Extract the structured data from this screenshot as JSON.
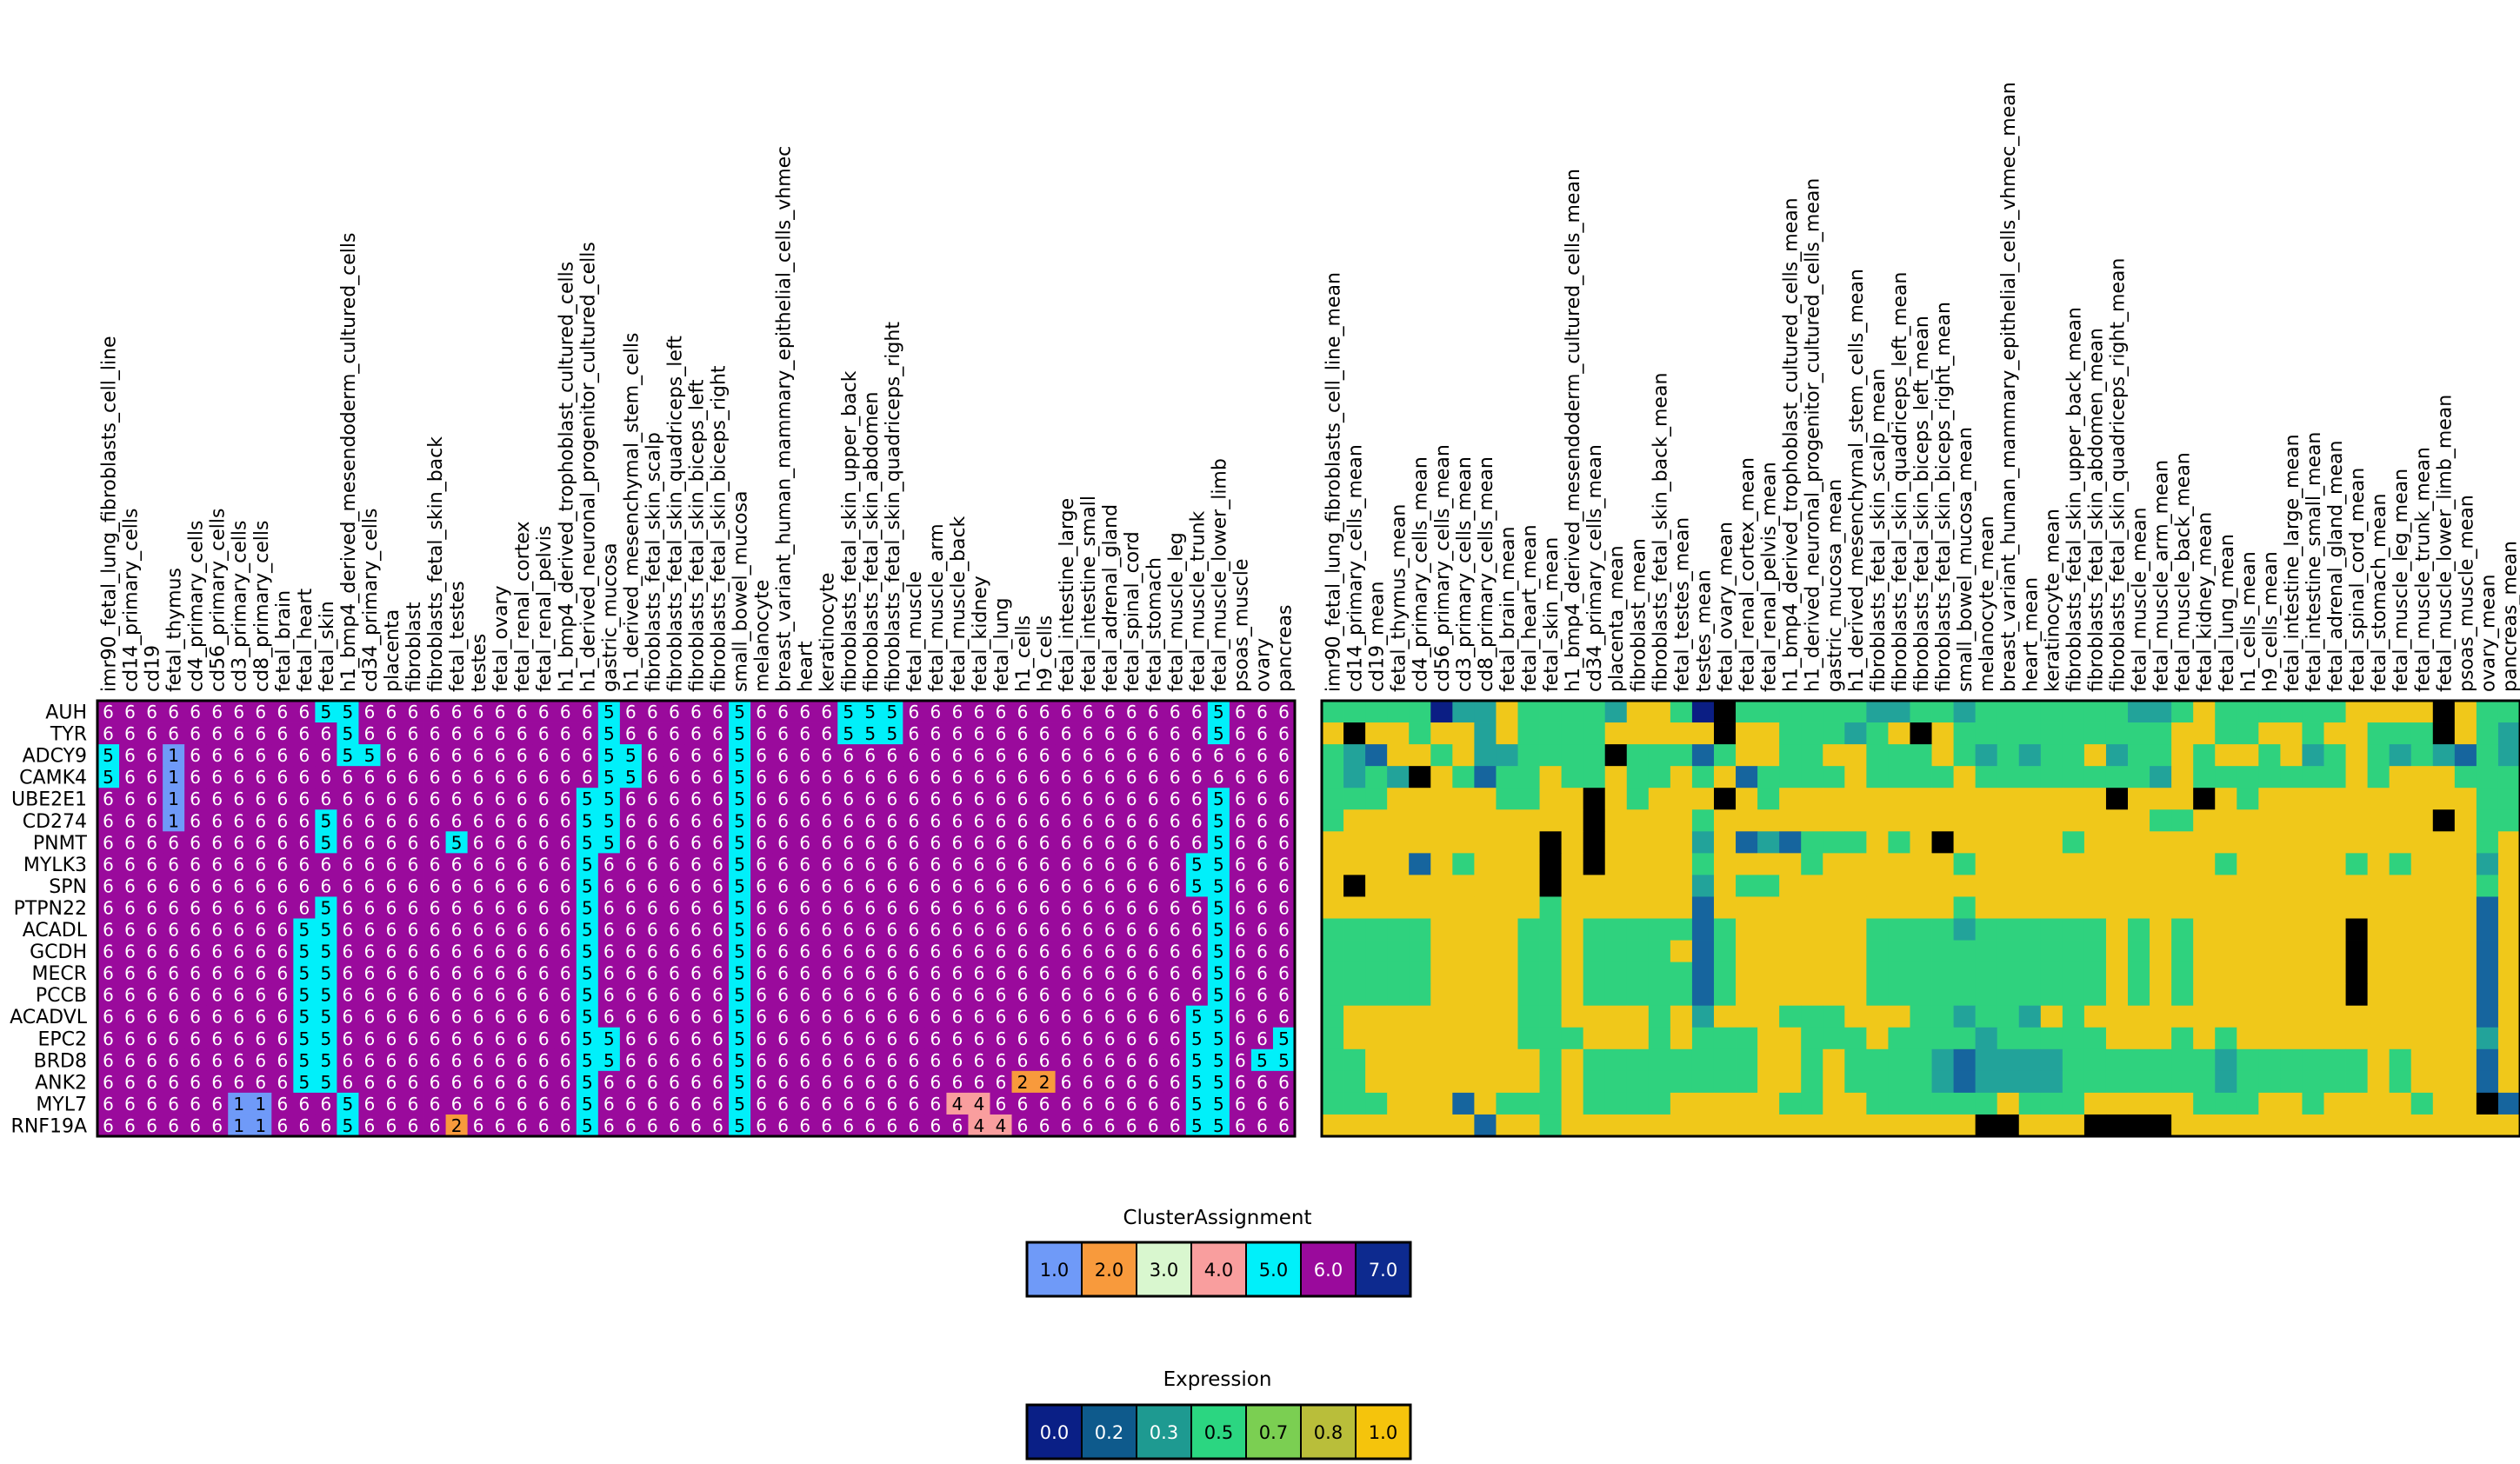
{
  "chart_data": {
    "type": "heatmap",
    "genes": [
      "AUH",
      "TYR",
      "ADCY9",
      "CAMK4",
      "UBE2E1",
      "CD274",
      "PNMT",
      "MYLK3",
      "SPN",
      "PTPN22",
      "ACADL",
      "GCDH",
      "MECR",
      "PCCB",
      "ACADVL",
      "EPC2",
      "BRD8",
      "ANK2",
      "MYL7",
      "RNF19A"
    ],
    "samples": [
      "imr90_fetal_lung_fibroblasts_cell_line",
      "cd14_primary_cells",
      "cd19",
      "fetal_thymus",
      "cd4_primary_cells",
      "cd56_primary_cells",
      "cd3_primary_cells",
      "cd8_primary_cells",
      "fetal_brain",
      "fetal_heart",
      "fetal_skin",
      "h1_bmp4_derived_mesendoderm_cultured_cells",
      "cd34_primary_cells",
      "placenta",
      "fibroblast",
      "fibroblasts_fetal_skin_back",
      "fetal_testes",
      "testes",
      "fetal_ovary",
      "fetal_renal_cortex",
      "fetal_renal_pelvis",
      "h1_bmp4_derived_trophoblast_cultured_cells",
      "h1_derived_neuronal_progenitor_cultured_cells",
      "gastric_mucosa",
      "h1_derived_mesenchymal_stem_cells",
      "fibroblasts_fetal_skin_scalp",
      "fibroblasts_fetal_skin_quadriceps_left",
      "fibroblasts_fetal_skin_biceps_left",
      "fibroblasts_fetal_skin_biceps_right",
      "small_bowel_mucosa",
      "melanocyte",
      "breast_variant_human_mammary_epithelial_cells_vhmec",
      "heart",
      "keratinocyte",
      "fibroblasts_fetal_skin_upper_back",
      "fibroblasts_fetal_skin_abdomen",
      "fibroblasts_fetal_skin_quadriceps_right",
      "fetal_muscle",
      "fetal_muscle_arm",
      "fetal_muscle_back",
      "fetal_kidney",
      "fetal_lung",
      "h1_cells",
      "h9_cells",
      "fetal_intestine_large",
      "fetal_intestine_small",
      "fetal_adrenal_gland",
      "fetal_spinal_cord",
      "fetal_stomach",
      "fetal_muscle_leg",
      "fetal_muscle_trunk",
      "fetal_muscle_lower_limb",
      "psoas_muscle",
      "ovary",
      "pancreas"
    ],
    "cluster_overrides": [
      [
        [
          10,
          5
        ],
        [
          11,
          5
        ],
        [
          23,
          5
        ],
        [
          29,
          5
        ],
        [
          34,
          5
        ],
        [
          35,
          5
        ],
        [
          36,
          5
        ],
        [
          51,
          5
        ]
      ],
      [
        [
          11,
          5
        ],
        [
          23,
          5
        ],
        [
          29,
          5
        ],
        [
          34,
          5
        ],
        [
          35,
          5
        ],
        [
          36,
          5
        ],
        [
          51,
          5
        ]
      ],
      [
        [
          0,
          5
        ],
        [
          3,
          1
        ],
        [
          11,
          5
        ],
        [
          12,
          5
        ],
        [
          23,
          5
        ],
        [
          24,
          5
        ],
        [
          29,
          5
        ]
      ],
      [
        [
          0,
          5
        ],
        [
          3,
          1
        ],
        [
          23,
          5
        ],
        [
          24,
          5
        ],
        [
          29,
          5
        ]
      ],
      [
        [
          3,
          1
        ],
        [
          22,
          5
        ],
        [
          23,
          5
        ],
        [
          29,
          5
        ],
        [
          51,
          5
        ]
      ],
      [
        [
          3,
          1
        ],
        [
          10,
          5
        ],
        [
          22,
          5
        ],
        [
          23,
          5
        ],
        [
          29,
          5
        ],
        [
          51,
          5
        ]
      ],
      [
        [
          10,
          5
        ],
        [
          16,
          5
        ],
        [
          22,
          5
        ],
        [
          23,
          5
        ],
        [
          29,
          5
        ],
        [
          51,
          5
        ]
      ],
      [
        [
          22,
          5
        ],
        [
          29,
          5
        ],
        [
          50,
          5
        ],
        [
          51,
          5
        ]
      ],
      [
        [
          22,
          5
        ],
        [
          29,
          5
        ],
        [
          50,
          5
        ],
        [
          51,
          5
        ]
      ],
      [
        [
          10,
          5
        ],
        [
          22,
          5
        ],
        [
          29,
          5
        ],
        [
          51,
          5
        ]
      ],
      [
        [
          9,
          5
        ],
        [
          10,
          5
        ],
        [
          22,
          5
        ],
        [
          29,
          5
        ],
        [
          51,
          5
        ]
      ],
      [
        [
          9,
          5
        ],
        [
          10,
          5
        ],
        [
          22,
          5
        ],
        [
          29,
          5
        ],
        [
          51,
          5
        ]
      ],
      [
        [
          9,
          5
        ],
        [
          10,
          5
        ],
        [
          22,
          5
        ],
        [
          29,
          5
        ],
        [
          51,
          5
        ]
      ],
      [
        [
          9,
          5
        ],
        [
          10,
          5
        ],
        [
          22,
          5
        ],
        [
          29,
          5
        ],
        [
          51,
          5
        ]
      ],
      [
        [
          9,
          5
        ],
        [
          10,
          5
        ],
        [
          22,
          5
        ],
        [
          29,
          5
        ],
        [
          50,
          5
        ],
        [
          51,
          5
        ]
      ],
      [
        [
          9,
          5
        ],
        [
          10,
          5
        ],
        [
          22,
          5
        ],
        [
          23,
          5
        ],
        [
          29,
          5
        ],
        [
          50,
          5
        ],
        [
          51,
          5
        ],
        [
          54,
          5
        ]
      ],
      [
        [
          9,
          5
        ],
        [
          10,
          5
        ],
        [
          22,
          5
        ],
        [
          23,
          5
        ],
        [
          29,
          5
        ],
        [
          50,
          5
        ],
        [
          51,
          5
        ],
        [
          53,
          5
        ],
        [
          54,
          5
        ]
      ],
      [
        [
          9,
          5
        ],
        [
          10,
          5
        ],
        [
          22,
          5
        ],
        [
          29,
          5
        ],
        [
          42,
          2
        ],
        [
          43,
          2
        ],
        [
          50,
          5
        ],
        [
          51,
          5
        ]
      ],
      [
        [
          6,
          1
        ],
        [
          7,
          1
        ],
        [
          11,
          5
        ],
        [
          22,
          5
        ],
        [
          29,
          5
        ],
        [
          39,
          4
        ],
        [
          40,
          4
        ],
        [
          50,
          5
        ],
        [
          51,
          5
        ]
      ],
      [
        [
          6,
          1
        ],
        [
          7,
          1
        ],
        [
          11,
          5
        ],
        [
          16,
          2
        ],
        [
          22,
          5
        ],
        [
          29,
          5
        ],
        [
          40,
          4
        ],
        [
          41,
          4
        ],
        [
          50,
          5
        ],
        [
          51,
          5
        ]
      ]
    ],
    "cluster_default": 6,
    "expression_columns": [
      "imr90_fetal_lung_fibroblasts_cell_line_mean",
      "cd14_primary_cells_mean",
      "cd19_mean",
      "fetal_thymus_mean",
      "cd4_primary_cells_mean",
      "cd56_primary_cells_mean",
      "cd3_primary_cells_mean",
      "cd8_primary_cells_mean",
      "fetal_brain_mean",
      "fetal_heart_mean",
      "fetal_skin_mean",
      "h1_bmp4_derived_mesendoderm_cultured_cells_mean",
      "cd34_primary_cells_mean",
      "placenta_mean",
      "fibroblast_mean",
      "fibroblasts_fetal_skin_back_mean",
      "fetal_testes_mean",
      "testes_mean",
      "fetal_ovary_mean",
      "fetal_renal_cortex_mean",
      "fetal_renal_pelvis_mean",
      "h1_bmp4_derived_trophoblast_cultured_cells_mean",
      "h1_derived_neuronal_progenitor_cultured_cells_mean",
      "gastric_mucosa_mean",
      "h1_derived_mesenchymal_stem_cells_mean",
      "fibroblasts_fetal_skin_scalp_mean",
      "fibroblasts_fetal_skin_quadriceps_left_mean",
      "fibroblasts_fetal_skin_biceps_left_mean",
      "fibroblasts_fetal_skin_biceps_right_mean",
      "small_bowel_mucosa_mean",
      "melanocyte_mean",
      "breast_variant_human_mammary_epithelial_cells_vhmec_mean",
      "heart_mean",
      "keratinocyte_mean",
      "fibroblasts_fetal_skin_upper_back_mean",
      "fibroblasts_fetal_skin_abdomen_mean",
      "fibroblasts_fetal_skin_quadriceps_right_mean",
      "fetal_muscle_mean",
      "fetal_muscle_arm_mean",
      "fetal_muscle_back_mean",
      "fetal_kidney_mean",
      "fetal_lung_mean",
      "h1_cells_mean",
      "h9_cells_mean",
      "fetal_intestine_large_mean",
      "fetal_intestine_small_mean",
      "fetal_adrenal_gland_mean",
      "fetal_spinal_cord_mean",
      "fetal_stomach_mean",
      "fetal_muscle_leg_mean",
      "fetal_muscle_trunk_mean",
      "fetal_muscle_lower_limb_mean",
      "psoas_muscle_mean",
      "ovary_mean",
      "pancreas_mean"
    ],
    "expression_level_digits": [
      "3333302243333244305333333223323333333223433333344445433333",
      "4544344243333444445443332345433333333334433443443335432333",
      "3214434223333533313443344333432323342334344342343232132333",
      "3232543133433433434133334333343333333324333333343444333343",
      "3334444433445434445434444444444444445444543444444444433444",
      "3444444444445444434444444444444444444433444444444445433444",
      "4444444444545444424121333434544444344444444444444444434444",
      "4444143444545444434444344444434444444444434444434344424224",
      "4544444444544444424334444444444444444444444444444444434444",
      "4444444444344444414444444444434444444444444444444444414444",
      "3333344443343333313444444333323333334343444444454444414444",
      "3333344443343333413444444333333333334343444444454444414444",
      "3333344443343333313444444333333333334343444444454444414444",
      "3333344443343333313444444333333333334343444444454444414444",
      "3444444443344443424443334443323324344444444444444444414444",
      "3444444443334443433344333433332333334443434444444444424333",
      "3344444444343333333344343333212222333333323333334344414322",
      "3344444444343333333344343333212222333333323333334344414322",
      "3334441433343333444443344333333433344444333443444434451443",
      "4444444144344444444444444444445544455554444444444444444444"
    ],
    "cluster_legend": {
      "title": "ClusterAssignment",
      "labels": [
        "1.0",
        "2.0",
        "3.0",
        "4.0",
        "5.0",
        "6.0",
        "7.0"
      ],
      "colors": [
        "#6f9af8",
        "#f89a3c",
        "#d9f7cf",
        "#f99e9e",
        "#00f0fa",
        "#9a0a9c",
        "#0d2a8f"
      ]
    },
    "expression_legend": {
      "title": "Expression",
      "labels": [
        "0.0",
        "0.2",
        "0.3",
        "0.5",
        "0.7",
        "0.8",
        "1.0"
      ],
      "colors": [
        "#0a1f86",
        "#0e5a8c",
        "#1e9a91",
        "#2bd681",
        "#7bcf52",
        "#b9be3a",
        "#f5c40c"
      ]
    },
    "expression_heat_colors": [
      "#0b1e84",
      "#16659e",
      "#22a39a",
      "#2fd27e",
      "#f0c81a"
    ]
  }
}
